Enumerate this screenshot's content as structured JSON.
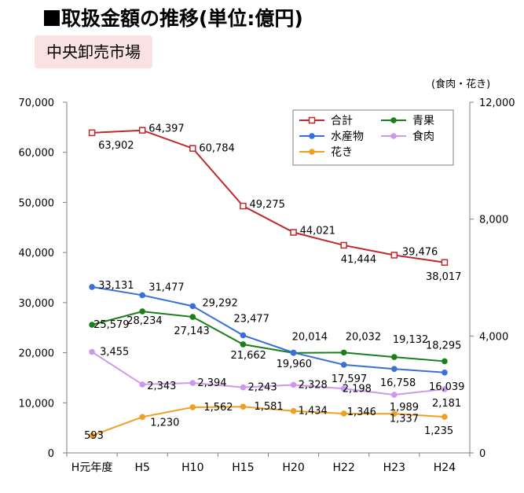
{
  "title": "取扱金額の推移(単位:億円)",
  "subtitle": "中央卸売市場",
  "right_axis_unit": "(食肉・花き)",
  "chart_data": {
    "type": "line",
    "categories": [
      "H元年度",
      "H5",
      "H10",
      "H15",
      "H20",
      "H22",
      "H23",
      "H24"
    ],
    "y_left": {
      "ylim": [
        0,
        70000
      ],
      "ticks": [
        "0",
        "10,000",
        "20,000",
        "30,000",
        "40,000",
        "50,000",
        "60,000",
        "70,000"
      ]
    },
    "y_right": {
      "ylim": [
        0,
        12000
      ],
      "ticks": [
        "0",
        "4,000",
        "8,000",
        "12,000"
      ]
    },
    "grid": false,
    "legend_position": "top-right",
    "series": [
      {
        "name": "合計",
        "color": "#c0282d",
        "marker": "square-open",
        "axis": "left",
        "values": [
          63902,
          64397,
          60784,
          49275,
          44021,
          41444,
          39476,
          38017
        ],
        "labels": [
          "63,902",
          "64,397",
          "60,784",
          "49,275",
          "44,021",
          "41,444",
          "39,476",
          "38,017"
        ]
      },
      {
        "name": "青果",
        "color": "#1a7f1a",
        "marker": "circle",
        "axis": "left",
        "values": [
          25579,
          28234,
          27143,
          21662,
          19960,
          20032,
          19132,
          18295
        ],
        "labels": [
          "25,579",
          "28,234",
          "27,143",
          "21,662",
          "19,960",
          "20,032",
          "19,132",
          "18,295"
        ]
      },
      {
        "name": "水産物",
        "color": "#3a6fd8",
        "marker": "circle",
        "axis": "left",
        "values": [
          33131,
          31477,
          29292,
          23477,
          20014,
          17597,
          16758,
          16039
        ],
        "labels": [
          "33,131",
          "31,477",
          "29,292",
          "23,477",
          "20,014",
          "17,597",
          "16,758",
          "16,039"
        ]
      },
      {
        "name": "食肉",
        "color": "#cc99ee",
        "marker": "circle",
        "axis": "right",
        "values": [
          3455,
          2343,
          2394,
          2243,
          2328,
          2198,
          1989,
          2181
        ],
        "labels": [
          "3,455",
          "2,343",
          "2,394",
          "2,243",
          "2,328",
          "2,198",
          "1,989",
          "2,181"
        ]
      },
      {
        "name": "花き",
        "color": "#f0a020",
        "marker": "circle",
        "axis": "right",
        "values": [
          593,
          1230,
          1562,
          1581,
          1434,
          1346,
          1337,
          1235
        ],
        "labels": [
          "593",
          "1,230",
          "1,562",
          "1,581",
          "1,434",
          "1,346",
          "1,337",
          "1,235"
        ]
      }
    ]
  }
}
